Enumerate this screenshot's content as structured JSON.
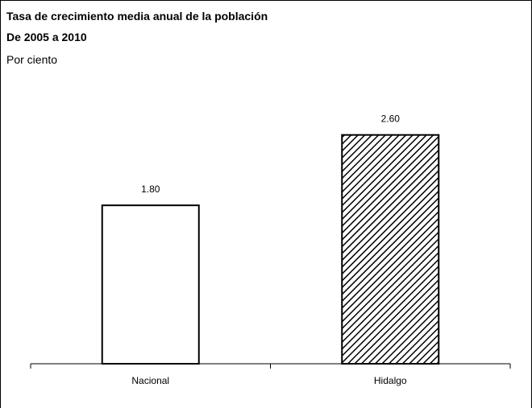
{
  "chart_data": {
    "type": "bar",
    "title": "Tasa de crecimiento media anual de la población",
    "subtitle": "De 2005 a 2010",
    "unit_label": "Por ciento",
    "categories": [
      "Nacional",
      "Hidalgo"
    ],
    "values": [
      1.8,
      2.6
    ],
    "value_labels": [
      "1.80",
      "2.60"
    ],
    "ylim": [
      0,
      3.1
    ],
    "grid": false,
    "legend": "none",
    "bar_styles": [
      "solid-white",
      "diagonal-hatch"
    ],
    "colors": {
      "bar_fill": "#ffffff",
      "stroke": "#000000",
      "hatch": "#000000"
    }
  }
}
